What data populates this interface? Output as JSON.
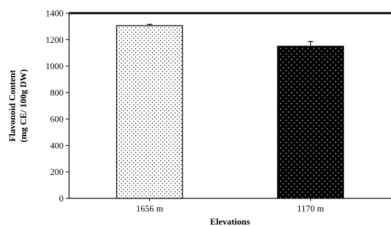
{
  "chart_data": {
    "type": "bar",
    "title": "",
    "xlabel": "Elevations",
    "ylabel_line1": "Flavonoid Content",
    "ylabel_line2": "(mg CE/ 100g DW)",
    "ylim": [
      0,
      1400
    ],
    "yticks": [
      0,
      200,
      400,
      600,
      800,
      1000,
      1200,
      1400
    ],
    "categories": [
      "1656 m",
      "1170 m"
    ],
    "values": [
      1305,
      1150
    ],
    "errors": [
      10,
      35
    ],
    "bar_fills": [
      "#ffffff",
      "#000000"
    ],
    "dot_colors": [
      "#000000",
      "#ffffff"
    ],
    "grid": false,
    "legend": "none"
  }
}
